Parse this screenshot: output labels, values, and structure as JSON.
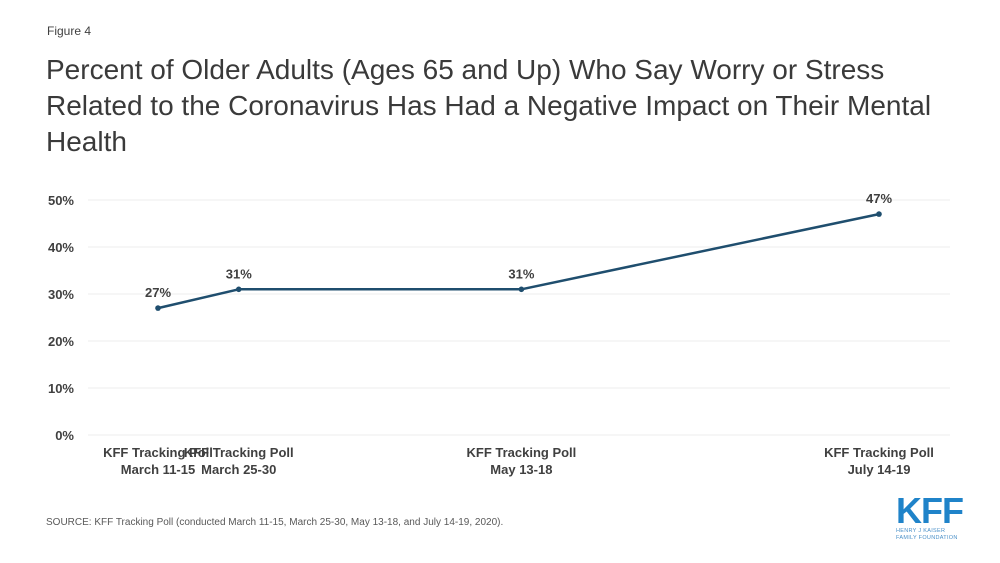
{
  "figure_label": "Figure 4",
  "title": "Percent of Older Adults (Ages 65 and Up) Who Say Worry or Stress Related to the Coronavirus Has Had a Negative Impact on Their Mental Health",
  "source": "SOURCE: KFF Tracking Poll (conducted March 11-15, March 25-30, May 13-18, and July 14-19, 2020).",
  "logo": {
    "main": "KFF",
    "line1": "HENRY J KAISER",
    "line2": "FAMILY FOUNDATION",
    "color": "#1f83c9"
  },
  "colors": {
    "line": "#1f4e6e",
    "grid": "#ececec",
    "text": "#404040"
  },
  "chart_data": {
    "type": "line",
    "title": "Percent of Older Adults (Ages 65 and Up) Who Say Worry or Stress Related to the Coronavirus Has Had a Negative Impact on Their Mental Health",
    "xlabel": "",
    "ylabel": "",
    "categories": [
      {
        "line1": "KFF Tracking Poll",
        "line2": "March 11-15",
        "date": "2020-03-13"
      },
      {
        "line1": "KFF Tracking Poll",
        "line2": "March 25-30",
        "date": "2020-03-27"
      },
      {
        "line1": "KFF Tracking Poll",
        "line2": "May 13-18",
        "date": "2020-05-15"
      },
      {
        "line1": "KFF Tracking Poll",
        "line2": "July 14-19",
        "date": "2020-07-16"
      }
    ],
    "series": [
      {
        "name": "Older adults (65+)",
        "values": [
          27,
          31,
          31,
          47
        ],
        "labels": [
          "27%",
          "31%",
          "31%",
          "47%"
        ]
      }
    ],
    "ylim": [
      0,
      50
    ],
    "yticks": [
      0,
      10,
      20,
      30,
      40,
      50
    ],
    "ytick_labels": [
      "0%",
      "10%",
      "20%",
      "30%",
      "40%",
      "50%"
    ],
    "x_spacing": "time-proportional",
    "grid": true,
    "legend": "none"
  }
}
